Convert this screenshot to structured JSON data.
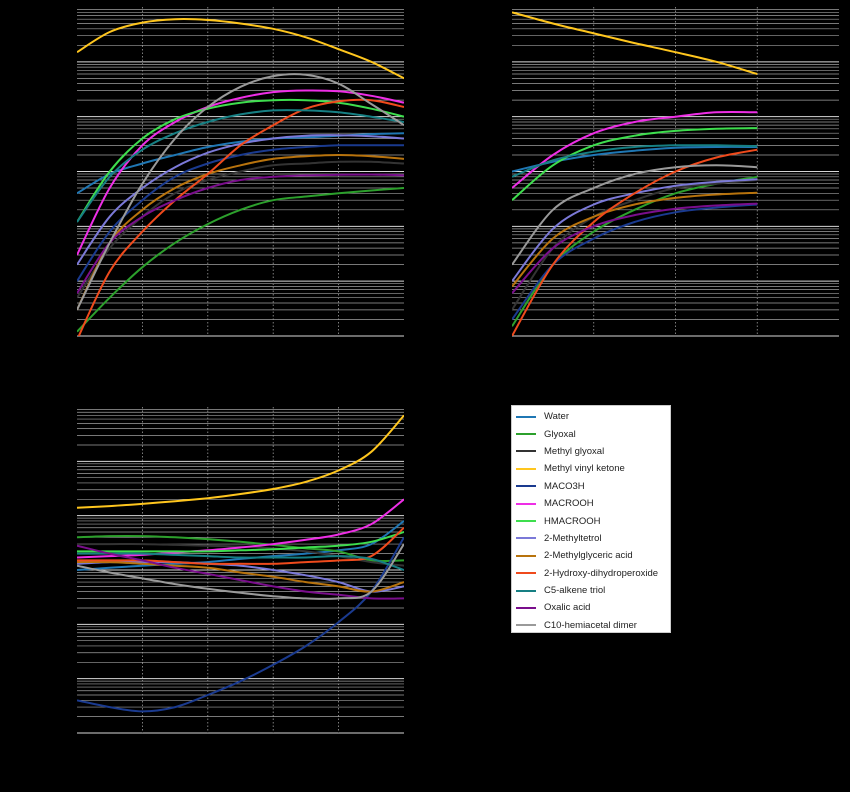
{
  "chart_data": [
    {
      "type": "line",
      "panel": "top-left",
      "yscale": "log",
      "grid": true,
      "title": "",
      "xlabel": "",
      "ylabel": "",
      "xlim": [
        0,
        5
      ],
      "ylim": [
        1e-05,
        10
      ],
      "x": [
        0,
        0.5,
        1,
        1.5,
        2,
        2.5,
        3,
        3.5,
        4,
        4.5,
        5
      ],
      "series": [
        {
          "key": "water",
          "values": [
            0.004,
            0.009,
            0.014,
            0.02,
            0.028,
            0.035,
            0.04,
            0.042,
            0.045,
            0.048,
            0.05
          ]
        },
        {
          "key": "glyoxal",
          "values": [
            1.2e-05,
            5e-05,
            0.00018,
            0.0005,
            0.0011,
            0.002,
            0.003,
            0.0035,
            0.004,
            0.0045,
            0.005
          ]
        },
        {
          "key": "methylglyoxal",
          "values": [
            5e-05,
            0.0004,
            0.0015,
            0.004,
            0.007,
            0.01,
            0.013,
            0.014,
            0.015,
            0.015,
            0.014
          ]
        },
        {
          "key": "mvk",
          "values": [
            1.5,
            3.5,
            5.2,
            6.0,
            5.8,
            5.0,
            4.0,
            2.8,
            1.7,
            1.0,
            0.5
          ]
        },
        {
          "key": "maco3h",
          "values": [
            0.0001,
            0.0008,
            0.003,
            0.008,
            0.014,
            0.02,
            0.025,
            0.028,
            0.03,
            0.03,
            0.03
          ]
        },
        {
          "key": "macrooh",
          "values": [
            0.0003,
            0.005,
            0.03,
            0.08,
            0.15,
            0.22,
            0.28,
            0.3,
            0.29,
            0.24,
            0.18
          ]
        },
        {
          "key": "hmacrooh",
          "values": [
            0.0012,
            0.01,
            0.04,
            0.09,
            0.14,
            0.18,
            0.2,
            0.2,
            0.18,
            0.14,
            0.1
          ]
        },
        {
          "key": "methyltetrol",
          "values": [
            0.0002,
            0.0015,
            0.005,
            0.012,
            0.022,
            0.032,
            0.04,
            0.045,
            0.046,
            0.044,
            0.04
          ]
        },
        {
          "key": "methylglyceric",
          "values": [
            3e-05,
            0.0005,
            0.002,
            0.005,
            0.009,
            0.013,
            0.017,
            0.019,
            0.02,
            0.019,
            0.017
          ]
        },
        {
          "key": "hydroxydihydroperoxide",
          "values": [
            8.5e-06,
            0.00015,
            0.0008,
            0.003,
            0.009,
            0.03,
            0.07,
            0.14,
            0.19,
            0.2,
            0.15
          ]
        },
        {
          "key": "c5alkenetriol",
          "values": [
            0.0012,
            0.008,
            0.025,
            0.05,
            0.08,
            0.11,
            0.13,
            0.13,
            0.12,
            0.1,
            0.08
          ]
        },
        {
          "key": "oxalic",
          "values": [
            6e-05,
            0.0005,
            0.0015,
            0.003,
            0.005,
            0.007,
            0.008,
            0.0085,
            0.0087,
            0.0088,
            0.0085
          ]
        },
        {
          "key": "c10dimer",
          "values": [
            3e-05,
            0.0005,
            0.006,
            0.04,
            0.15,
            0.35,
            0.55,
            0.58,
            0.4,
            0.17,
            0.07
          ]
        }
      ]
    },
    {
      "type": "line",
      "panel": "top-right",
      "yscale": "log",
      "grid": true,
      "title": "",
      "xlabel": "",
      "ylabel": "",
      "xlim": [
        0,
        4
      ],
      "ylim": [
        1e-05,
        10
      ],
      "x": [
        0,
        0.5,
        1,
        1.5,
        2,
        2.5,
        3
      ],
      "series": [
        {
          "key": "water",
          "values": [
            0.01,
            0.015,
            0.02,
            0.024,
            0.027,
            0.028,
            0.028
          ]
        },
        {
          "key": "glyoxal",
          "values": [
            1.5e-05,
            0.0002,
            0.0008,
            0.002,
            0.004,
            0.006,
            0.008
          ]
        },
        {
          "key": "methylglyoxal",
          "values": [
            3e-05,
            0.0004,
            0.0015,
            0.003,
            0.005,
            0.006,
            0.007
          ]
        },
        {
          "key": "mvk",
          "values": [
            8,
            5,
            3.3,
            2.2,
            1.5,
            1.0,
            0.6
          ]
        },
        {
          "key": "maco3h",
          "values": [
            2e-05,
            0.0002,
            0.0006,
            0.0012,
            0.0018,
            0.0022,
            0.0025
          ]
        },
        {
          "key": "macrooh",
          "values": [
            0.005,
            0.02,
            0.05,
            0.08,
            0.1,
            0.12,
            0.12
          ]
        },
        {
          "key": "hmacrooh",
          "values": [
            0.003,
            0.013,
            0.03,
            0.045,
            0.055,
            0.06,
            0.062
          ]
        },
        {
          "key": "methyltetrol",
          "values": [
            0.0001,
            0.0009,
            0.0025,
            0.004,
            0.0055,
            0.0065,
            0.0072
          ]
        },
        {
          "key": "methylglyceric",
          "values": [
            8e-05,
            0.0006,
            0.0015,
            0.0025,
            0.0033,
            0.0038,
            0.0041
          ]
        },
        {
          "key": "hydroxydihydroperoxide",
          "values": [
            1e-05,
            0.0002,
            0.0012,
            0.004,
            0.01,
            0.018,
            0.025
          ]
        },
        {
          "key": "c5alkenetriol",
          "values": [
            0.008,
            0.016,
            0.023,
            0.028,
            0.03,
            0.03,
            0.029
          ]
        },
        {
          "key": "oxalic",
          "values": [
            6e-05,
            0.0004,
            0.001,
            0.0016,
            0.0021,
            0.0024,
            0.0026
          ]
        },
        {
          "key": "c10dimer",
          "values": [
            0.0002,
            0.002,
            0.005,
            0.009,
            0.012,
            0.013,
            0.012
          ]
        }
      ]
    },
    {
      "type": "line",
      "panel": "bottom-left",
      "yscale": "log",
      "grid": true,
      "title": "",
      "xlabel": "",
      "ylabel": "",
      "xlim": [
        0,
        5
      ],
      "ylim": [
        0.0001,
        100
      ],
      "x": [
        0,
        0.5,
        1,
        1.5,
        2,
        2.5,
        3,
        3.5,
        4,
        4.5,
        5
      ],
      "series": [
        {
          "key": "water",
          "values": [
            0.1,
            0.11,
            0.12,
            0.13,
            0.14,
            0.16,
            0.18,
            0.2,
            0.23,
            0.3,
            0.8
          ]
        },
        {
          "key": "glyoxal",
          "values": [
            0.4,
            0.42,
            0.42,
            0.4,
            0.37,
            0.33,
            0.29,
            0.25,
            0.22,
            0.15,
            0.15
          ]
        },
        {
          "key": "methylglyoxal",
          "values": [
            0.3,
            0.3,
            0.3,
            0.29,
            0.28,
            0.27,
            0.25,
            0.22,
            0.18,
            0.14,
            0.12
          ]
        },
        {
          "key": "mvk",
          "values": [
            1.4,
            1.5,
            1.65,
            1.85,
            2.1,
            2.5,
            3.1,
            4.2,
            6.8,
            15,
            70
          ]
        },
        {
          "key": "maco3h",
          "values": [
            0.0004,
            0.0003,
            0.00025,
            0.0003,
            0.0005,
            0.0009,
            0.0018,
            0.004,
            0.011,
            0.04,
            0.4
          ]
        },
        {
          "key": "macrooh",
          "values": [
            0.17,
            0.18,
            0.19,
            0.21,
            0.23,
            0.26,
            0.3,
            0.36,
            0.45,
            0.7,
            2.0
          ]
        },
        {
          "key": "hmacrooh",
          "values": [
            0.22,
            0.22,
            0.22,
            0.22,
            0.22,
            0.23,
            0.24,
            0.26,
            0.28,
            0.33,
            0.5
          ]
        },
        {
          "key": "methyltetrol",
          "values": [
            0.13,
            0.14,
            0.14,
            0.14,
            0.13,
            0.12,
            0.1,
            0.08,
            0.06,
            0.04,
            0.05
          ]
        },
        {
          "key": "methylglyceric",
          "values": [
            0.14,
            0.14,
            0.13,
            0.12,
            0.11,
            0.09,
            0.075,
            0.06,
            0.05,
            0.04,
            0.06
          ]
        },
        {
          "key": "hydroxydihydroperoxide",
          "values": [
            0.15,
            0.15,
            0.15,
            0.14,
            0.13,
            0.13,
            0.13,
            0.14,
            0.15,
            0.18,
            0.6
          ]
        },
        {
          "key": "c5alkenetriol",
          "values": [
            0.2,
            0.2,
            0.2,
            0.19,
            0.18,
            0.17,
            0.17,
            0.17,
            0.18,
            0.16,
            0.1
          ]
        },
        {
          "key": "oxalic",
          "values": [
            0.28,
            0.2,
            0.15,
            0.11,
            0.085,
            0.065,
            0.05,
            0.04,
            0.035,
            0.03,
            0.03
          ]
        },
        {
          "key": "c10dimer",
          "values": [
            0.12,
            0.09,
            0.07,
            0.055,
            0.045,
            0.038,
            0.033,
            0.03,
            0.03,
            0.04,
            0.3
          ]
        }
      ]
    }
  ],
  "legend": {
    "position": "right",
    "entries": [
      {
        "key": "water",
        "label": "Water",
        "color": "#1f77b4"
      },
      {
        "key": "glyoxal",
        "label": "Glyoxal",
        "color": "#2ca02c"
      },
      {
        "key": "methylglyoxal",
        "label": "Methyl glyoxal",
        "color": "#333333"
      },
      {
        "key": "mvk",
        "label": "Methyl vinyl ketone",
        "color": "#ffc61e"
      },
      {
        "key": "maco3h",
        "label": "MACO3H",
        "color": "#1a3a8f"
      },
      {
        "key": "macrooh",
        "label": "MACROOH",
        "color": "#ee2ee6"
      },
      {
        "key": "hmacrooh",
        "label": "HMACROOH",
        "color": "#3ede4e"
      },
      {
        "key": "methyltetrol",
        "label": "2-Methyltetrol",
        "color": "#7b79d8"
      },
      {
        "key": "methylglyceric",
        "label": "2-Methylglyceric acid",
        "color": "#b8730d"
      },
      {
        "key": "hydroxydihydroperoxide",
        "label": "2-Hydroxy-dihydroperoxide",
        "color": "#ef4a1c"
      },
      {
        "key": "c5alkenetriol",
        "label": "C5-alkene triol",
        "color": "#167f83"
      },
      {
        "key": "oxalic",
        "label": "Oxalic acid",
        "color": "#7a0e8c"
      },
      {
        "key": "c10dimer",
        "label": "C10-hemiacetal dimer",
        "color": "#9a9a9a"
      }
    ]
  }
}
